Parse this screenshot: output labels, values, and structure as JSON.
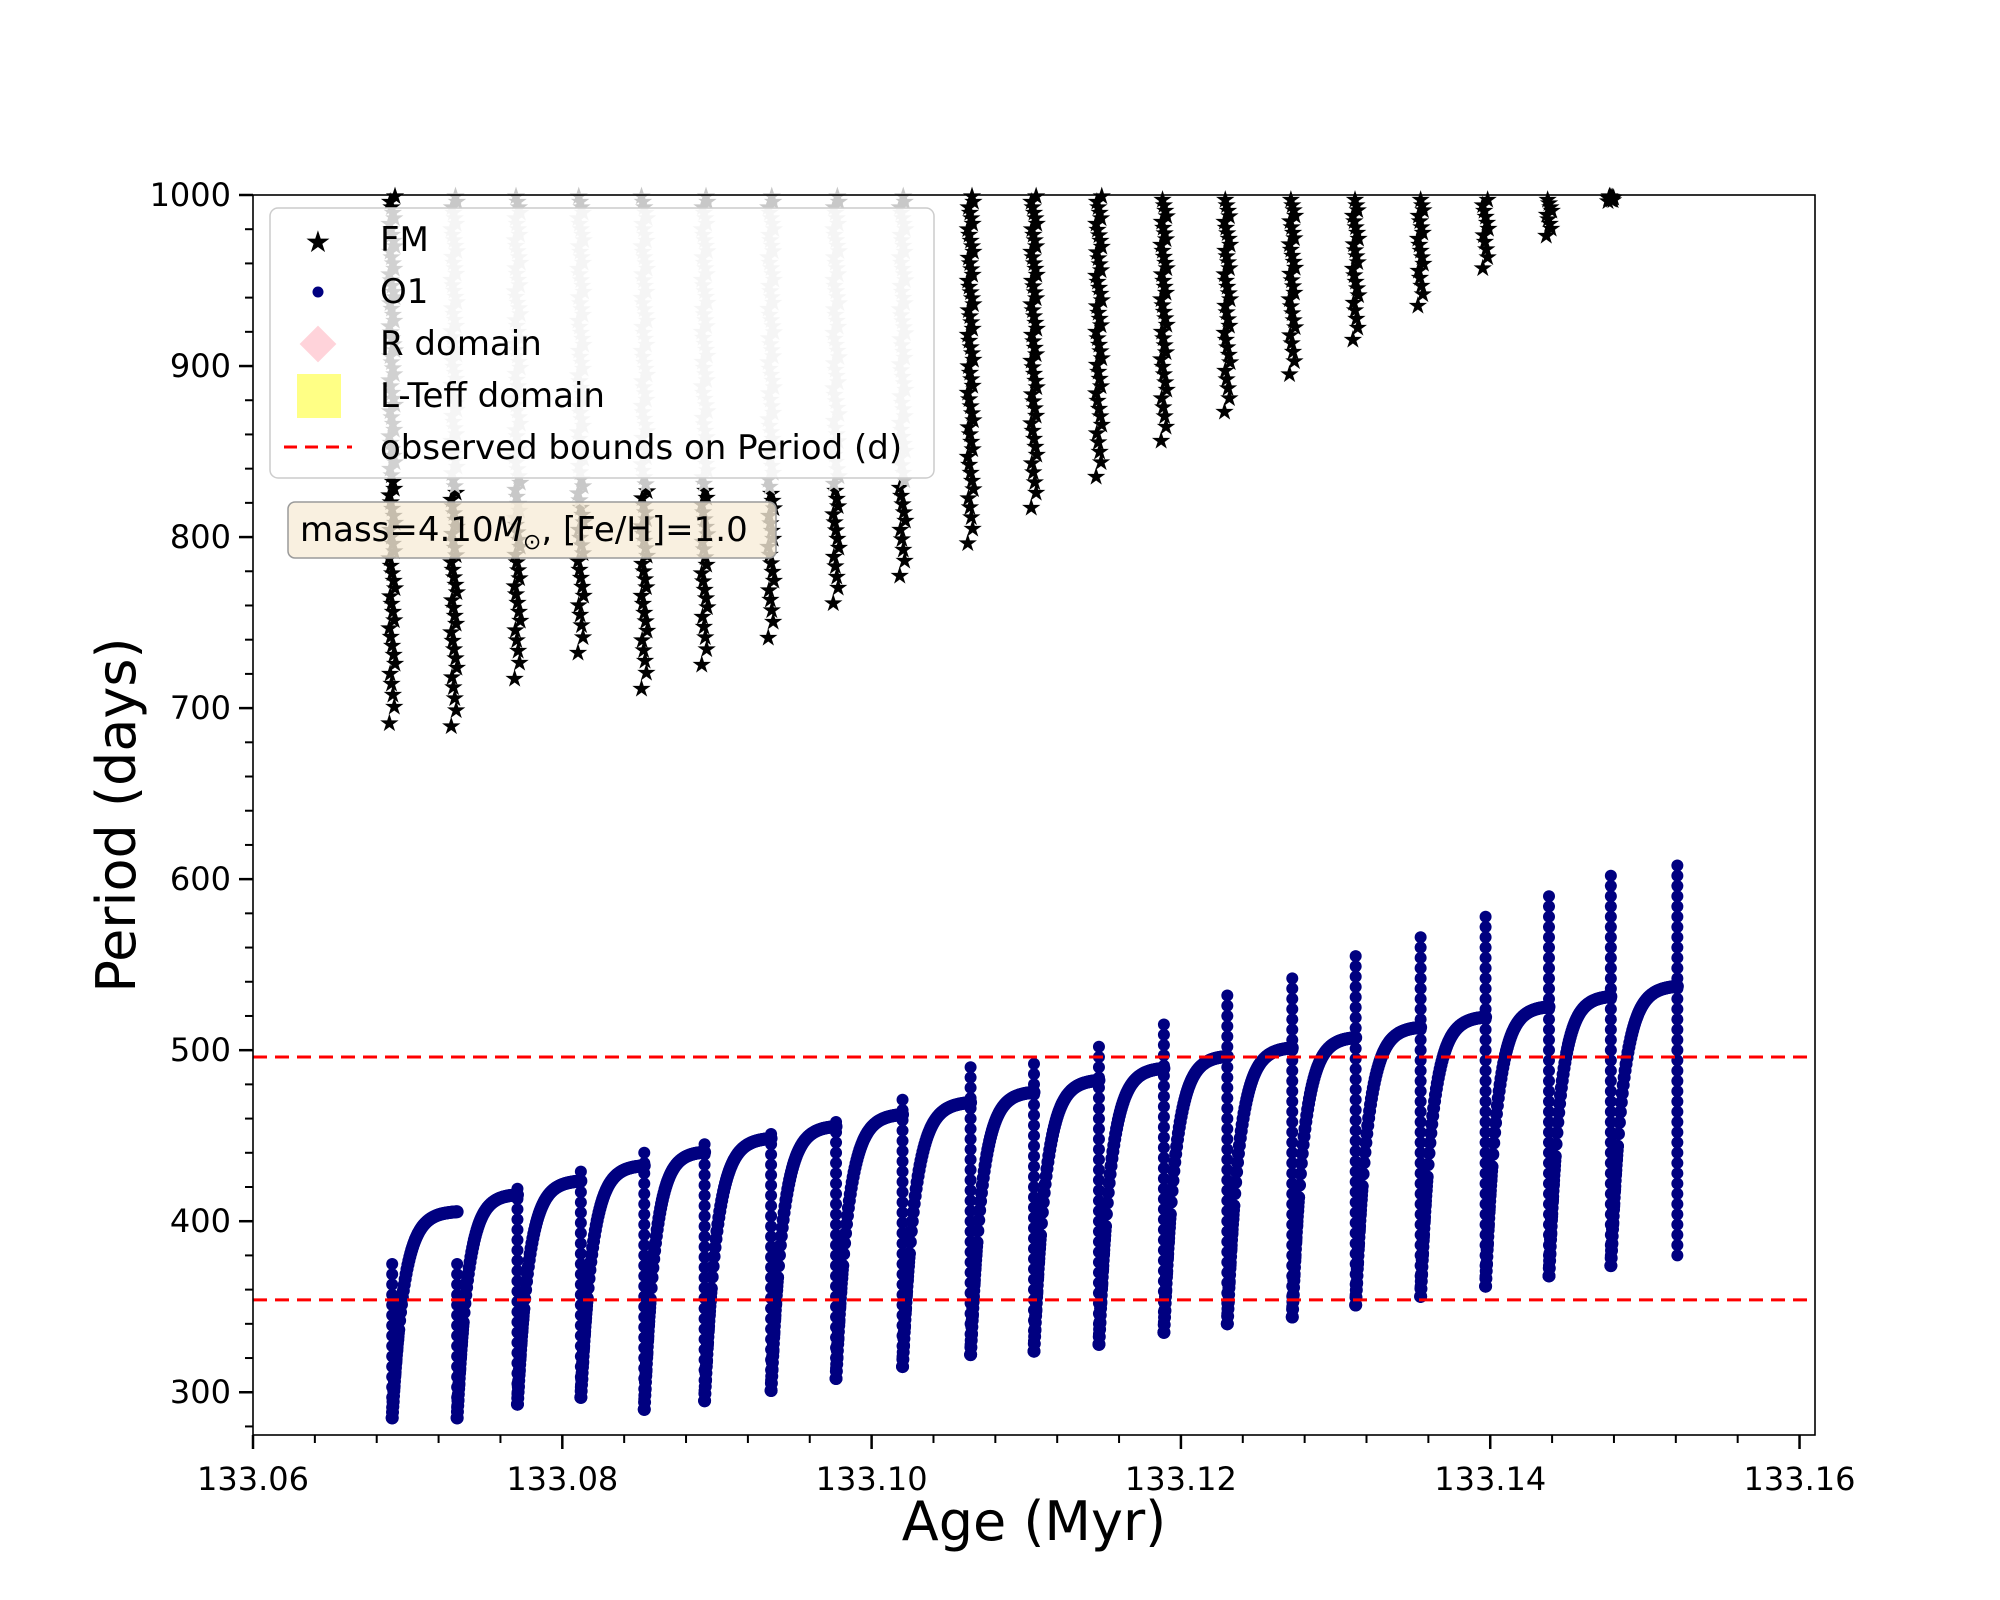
{
  "chart_data": {
    "type": "scatter",
    "title": "",
    "xlabel": "Age (Myr)",
    "ylabel": "Period (days)",
    "xlim": [
      133.06,
      133.161
    ],
    "ylim": [
      275,
      1000
    ],
    "x_ticks": [
      "133.06",
      "133.08",
      "133.10",
      "133.12",
      "133.14",
      "133.16"
    ],
    "x_tick_values": [
      133.06,
      133.08,
      133.1,
      133.12,
      133.14,
      133.16
    ],
    "y_ticks": [
      "300",
      "400",
      "500",
      "600",
      "700",
      "800",
      "900",
      "1000"
    ],
    "y_tick_values": [
      300,
      400,
      500,
      600,
      700,
      800,
      900,
      1000
    ],
    "grid": false,
    "legend_position": "top-left",
    "legend": [
      {
        "label": "FM",
        "marker": "star",
        "color": "#000000"
      },
      {
        "label": "O1",
        "marker": "circle",
        "color": "#000080"
      },
      {
        "label": "R domain",
        "marker": "diamond",
        "color": "#ffc0cb"
      },
      {
        "label": "L-Teff domain",
        "marker": "square",
        "color": "#ffff66"
      },
      {
        "label": "observed bounds on Period (d)",
        "marker": "dashed-line",
        "color": "#ff0000"
      }
    ],
    "annotation": {
      "prefix": "mass=4.10",
      "mass_symbol": "M",
      "sub": "⊙",
      "suffix": ", [Fe/H]=1.0"
    },
    "hlines": [
      354,
      496
    ],
    "series": [
      {
        "name": "FM",
        "pulses": [
          {
            "x": 133.069,
            "min": 692,
            "max": 1000,
            "gray_from": null
          },
          {
            "x": 133.073,
            "min": 690,
            "max": 1000,
            "gray_from": 830
          },
          {
            "x": 133.0771,
            "min": 718,
            "max": 1000,
            "gray_from": 810
          },
          {
            "x": 133.0812,
            "min": 733,
            "max": 1000,
            "gray_from": 820
          },
          {
            "x": 133.0853,
            "min": 712,
            "max": 1000,
            "gray_from": 830
          },
          {
            "x": 133.0892,
            "min": 726,
            "max": 1000,
            "gray_from": 830
          },
          {
            "x": 133.0935,
            "min": 742,
            "max": 1000,
            "gray_from": 830
          },
          {
            "x": 133.0977,
            "min": 762,
            "max": 1000,
            "gray_from": 830
          },
          {
            "x": 133.102,
            "min": 778,
            "max": 1000,
            "gray_from": 830
          },
          {
            "x": 133.1064,
            "min": 797,
            "max": 1000,
            "gray_from": null
          },
          {
            "x": 133.1105,
            "min": 818,
            "max": 1000,
            "gray_from": null
          },
          {
            "x": 133.1147,
            "min": 836,
            "max": 1000,
            "gray_from": null
          },
          {
            "x": 133.1189,
            "min": 857,
            "max": 998,
            "gray_from": null
          },
          {
            "x": 133.123,
            "min": 874,
            "max": 998,
            "gray_from": null
          },
          {
            "x": 133.1272,
            "min": 896,
            "max": 998,
            "gray_from": null
          },
          {
            "x": 133.1313,
            "min": 916,
            "max": 998,
            "gray_from": null
          },
          {
            "x": 133.1355,
            "min": 936,
            "max": 998,
            "gray_from": null
          },
          {
            "x": 133.1397,
            "min": 958,
            "max": 998,
            "gray_from": null
          },
          {
            "x": 133.1438,
            "min": 977,
            "max": 998,
            "gray_from": null
          },
          {
            "x": 133.1478,
            "min": 997,
            "max": 1000,
            "gray_from": null
          }
        ]
      },
      {
        "name": "O1",
        "pulses": [
          {
            "x_start": 133.069,
            "x_end": 133.0732,
            "trough": 285,
            "plateau": 406,
            "spike_max": 380
          },
          {
            "x_start": 133.0732,
            "x_end": 133.0771,
            "trough": 285,
            "plateau": 416,
            "spike_max": 380
          },
          {
            "x_start": 133.0771,
            "x_end": 133.0812,
            "trough": 293,
            "plateau": 424,
            "spike_max": 420
          },
          {
            "x_start": 133.0812,
            "x_end": 133.0853,
            "trough": 297,
            "plateau": 433,
            "spike_max": 430
          },
          {
            "x_start": 133.0853,
            "x_end": 133.0892,
            "trough": 290,
            "plateau": 441,
            "spike_max": 440
          },
          {
            "x_start": 133.0892,
            "x_end": 133.0935,
            "trough": 295,
            "plateau": 449,
            "spike_max": 448
          },
          {
            "x_start": 133.0935,
            "x_end": 133.0977,
            "trough": 301,
            "plateau": 456,
            "spike_max": 455
          },
          {
            "x_start": 133.0977,
            "x_end": 133.102,
            "trough": 308,
            "plateau": 463,
            "spike_max": 462
          },
          {
            "x_start": 133.102,
            "x_end": 133.1064,
            "trough": 315,
            "plateau": 470,
            "spike_max": 475
          },
          {
            "x_start": 133.1064,
            "x_end": 133.1105,
            "trough": 322,
            "plateau": 476,
            "spike_max": 490
          },
          {
            "x_start": 133.1105,
            "x_end": 133.1147,
            "trough": 324,
            "plateau": 483,
            "spike_max": 492
          },
          {
            "x_start": 133.1147,
            "x_end": 133.1189,
            "trough": 328,
            "plateau": 490,
            "spike_max": 505
          },
          {
            "x_start": 133.1189,
            "x_end": 133.123,
            "trough": 335,
            "plateau": 497,
            "spike_max": 519
          },
          {
            "x_start": 133.123,
            "x_end": 133.1272,
            "trough": 340,
            "plateau": 502,
            "spike_max": 532
          },
          {
            "x_start": 133.1272,
            "x_end": 133.1313,
            "trough": 344,
            "plateau": 508,
            "spike_max": 545
          },
          {
            "x_start": 133.1313,
            "x_end": 133.1355,
            "trough": 351,
            "plateau": 514,
            "spike_max": 557
          },
          {
            "x_start": 133.1355,
            "x_end": 133.1397,
            "trough": 356,
            "plateau": 520,
            "spike_max": 568
          },
          {
            "x_start": 133.1397,
            "x_end": 133.1438,
            "trough": 362,
            "plateau": 526,
            "spike_max": 580
          },
          {
            "x_start": 133.1438,
            "x_end": 133.1478,
            "trough": 368,
            "plateau": 532,
            "spike_max": 590
          },
          {
            "x_start": 133.1478,
            "x_end": 133.1521,
            "trough": 374,
            "plateau": 538,
            "spike_max": 602
          },
          {
            "x_start": 133.1521,
            "x_end": 133.1521,
            "trough": 380,
            "plateau": 540,
            "spike_max": 612
          }
        ]
      }
    ]
  },
  "colors": {
    "fm": "#000000",
    "fm_gray": "#c8c8c8",
    "o1": "#000080",
    "bounds": "#ff0000",
    "annotation_bg": "#f8ecd8",
    "annotation_border": "#9a9a9a"
  }
}
